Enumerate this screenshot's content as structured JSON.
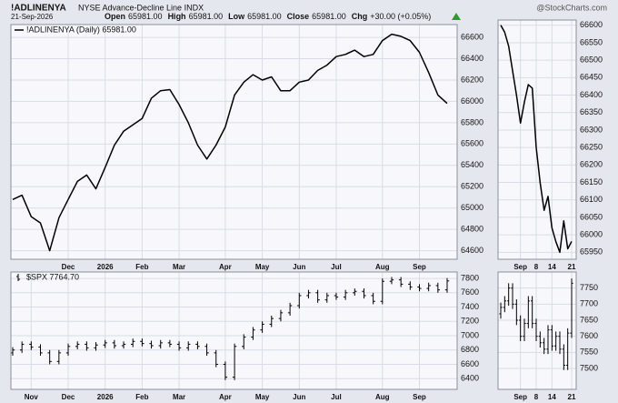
{
  "header": {
    "symbol": "!ADLINENYA",
    "description": "NYSE Advance-Decline Line INDX",
    "date": "21-Sep-2026",
    "quote": [
      {
        "label": "Open",
        "value": "65981.00"
      },
      {
        "label": "High",
        "value": "65981.00"
      },
      {
        "label": "Low",
        "value": "65981.00"
      },
      {
        "label": "Close",
        "value": "65981.00"
      },
      {
        "label": "Chg",
        "value": "+30.00 (+0.05%)"
      }
    ]
  },
  "watermark": "@StockCharts.com",
  "chart_data": [
    {
      "type": "line",
      "legend": "upper left",
      "grid": true,
      "categories": [
        null,
        null,
        null,
        null,
        null,
        null,
        "Dec",
        null,
        null,
        null,
        "2026",
        null,
        null,
        null,
        "Feb",
        null,
        null,
        null,
        "Mar",
        null,
        null,
        null,
        null,
        "Apr",
        null,
        null,
        null,
        "May",
        null,
        null,
        null,
        "Jun",
        null,
        null,
        null,
        "Jul",
        null,
        null,
        null,
        null,
        "Aug",
        null,
        null,
        null,
        "Sep",
        null,
        null,
        null
      ],
      "series": [
        {
          "name": "!ADLINENYA (Daily) 65981.00",
          "color": "#000000",
          "values": [
            65080,
            65120,
            64920,
            64860,
            64600,
            64910,
            65080,
            65250,
            65310,
            65180,
            65380,
            65590,
            65720,
            65780,
            65840,
            66030,
            66100,
            66110,
            65970,
            65800,
            65590,
            65460,
            65590,
            65760,
            66060,
            66180,
            66250,
            66200,
            66230,
            66100,
            66100,
            66180,
            66200,
            66290,
            66340,
            66420,
            66440,
            66480,
            66420,
            66440,
            66570,
            66630,
            66610,
            66570,
            66460,
            66270,
            66060,
            65981
          ]
        }
      ],
      "ylim": [
        64520,
        66720
      ],
      "yticks": [
        64600,
        64800,
        65000,
        65200,
        65400,
        65600,
        65800,
        66000,
        66200,
        66400,
        66600
      ]
    },
    {
      "type": "line",
      "grid": true,
      "categories": [
        null,
        null,
        null,
        null,
        null,
        "Sep",
        null,
        null,
        null,
        "8",
        null,
        null,
        null,
        "14",
        null,
        null,
        null,
        null,
        "21"
      ],
      "series": [
        {
          "color": "#000000",
          "values": [
            66600,
            66580,
            66540,
            66470,
            66400,
            66320,
            66380,
            66430,
            66420,
            66250,
            66150,
            66070,
            66110,
            66020,
            65980,
            65950,
            66040,
            65960,
            65981
          ]
        }
      ],
      "ylim": [
        65930,
        66615
      ],
      "yticks": [
        65950,
        66000,
        66050,
        66100,
        66150,
        66200,
        66250,
        66300,
        66350,
        66400,
        66450,
        66500,
        66550,
        66600
      ]
    },
    {
      "type": "ohlc",
      "legend": "upper left",
      "grid": true,
      "categories": [
        null,
        null,
        "Nov",
        null,
        null,
        null,
        "Dec",
        null,
        null,
        null,
        "2026",
        null,
        null,
        null,
        "Feb",
        null,
        null,
        null,
        "Mar",
        null,
        null,
        null,
        null,
        "Apr",
        null,
        null,
        null,
        "May",
        null,
        null,
        null,
        "Jun",
        null,
        null,
        null,
        "Jul",
        null,
        null,
        null,
        null,
        "Aug",
        null,
        null,
        null,
        "Sep",
        null,
        null,
        null
      ],
      "series": [
        {
          "name": "$SPX 7764.70",
          "color": "#000000",
          "open": [
            6760,
            6800,
            6880,
            6840,
            6760,
            6640,
            6760,
            6850,
            6880,
            6830,
            6870,
            6900,
            6860,
            6880,
            6920,
            6890,
            6860,
            6900,
            6880,
            6830,
            6880,
            6850,
            6760,
            6600,
            6420,
            6850,
            6980,
            7080,
            7160,
            7240,
            7320,
            7420,
            7560,
            7600,
            7500,
            7560,
            7540,
            7600,
            7620,
            7560,
            7480,
            7760,
            7780,
            7720,
            7680,
            7660,
            7700,
            7640
          ],
          "high": [
            6840,
            6920,
            6920,
            6880,
            6800,
            6800,
            6890,
            6920,
            6920,
            6910,
            6940,
            6940,
            6920,
            6960,
            6960,
            6930,
            6940,
            6940,
            6920,
            6920,
            6920,
            6890,
            6800,
            6640,
            6890,
            7020,
            7120,
            7200,
            7280,
            7360,
            7460,
            7600,
            7640,
            7640,
            7600,
            7600,
            7640,
            7660,
            7660,
            7600,
            7800,
            7820,
            7820,
            7760,
            7720,
            7740,
            7740,
            7805
          ],
          "low": [
            6720,
            6760,
            6800,
            6720,
            6600,
            6600,
            6720,
            6810,
            6790,
            6790,
            6830,
            6820,
            6820,
            6840,
            6850,
            6820,
            6820,
            6840,
            6790,
            6790,
            6810,
            6720,
            6560,
            6380,
            6380,
            6810,
            6940,
            7040,
            7120,
            7200,
            7280,
            7380,
            7520,
            7460,
            7460,
            7500,
            7500,
            7560,
            7520,
            7440,
            7440,
            7720,
            7680,
            7640,
            7620,
            7620,
            7600,
            7600
          ],
          "close": [
            6800,
            6880,
            6840,
            6760,
            6640,
            6760,
            6850,
            6880,
            6830,
            6870,
            6900,
            6860,
            6880,
            6920,
            6890,
            6860,
            6900,
            6880,
            6830,
            6880,
            6850,
            6760,
            6600,
            6420,
            6850,
            6980,
            7080,
            7160,
            7240,
            7320,
            7420,
            7560,
            7600,
            7500,
            7560,
            7540,
            7600,
            7620,
            7560,
            7480,
            7760,
            7780,
            7720,
            7680,
            7660,
            7700,
            7640,
            7765
          ]
        }
      ],
      "ylim": [
        6250,
        7890
      ],
      "yticks": [
        6400,
        6600,
        6800,
        7000,
        7200,
        7400,
        7600,
        7800
      ]
    },
    {
      "type": "ohlc",
      "grid": true,
      "categories": [
        null,
        null,
        null,
        null,
        null,
        "Sep",
        null,
        null,
        null,
        "8",
        null,
        null,
        null,
        "14",
        null,
        null,
        null,
        null,
        "21"
      ],
      "series": [
        {
          "color": "#000000",
          "open": [
            7670,
            7690,
            7710,
            7750,
            7700,
            7650,
            7600,
            7640,
            7710,
            7640,
            7600,
            7580,
            7560,
            7620,
            7570,
            7600,
            7560,
            7510,
            7610
          ],
          "high": [
            7705,
            7725,
            7765,
            7765,
            7715,
            7665,
            7655,
            7725,
            7725,
            7655,
            7615,
            7595,
            7635,
            7635,
            7615,
            7615,
            7575,
            7625,
            7780
          ],
          "low": [
            7655,
            7675,
            7695,
            7685,
            7635,
            7585,
            7585,
            7625,
            7625,
            7585,
            7565,
            7545,
            7545,
            7555,
            7555,
            7545,
            7495,
            7495,
            7595
          ],
          "close": [
            7690,
            7710,
            7750,
            7700,
            7650,
            7600,
            7640,
            7710,
            7640,
            7600,
            7580,
            7560,
            7620,
            7570,
            7600,
            7560,
            7510,
            7610,
            7765
          ]
        }
      ],
      "ylim": [
        7435,
        7800
      ],
      "yticks": [
        7500,
        7550,
        7600,
        7650,
        7700,
        7750
      ]
    }
  ]
}
